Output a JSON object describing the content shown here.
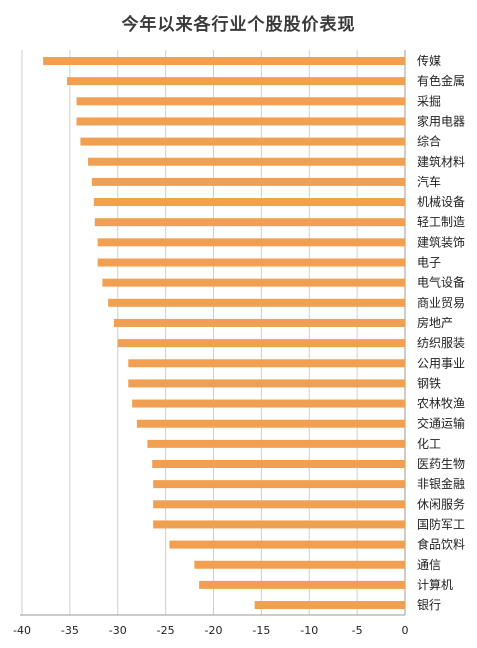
{
  "chart_data": {
    "type": "bar",
    "orientation": "horizontal",
    "title": "今年以来各行业个股股价表现",
    "xlabel": "",
    "ylabel": "",
    "xlim": [
      -40,
      0
    ],
    "xticks": [
      -40,
      -35,
      -30,
      -25,
      -20,
      -15,
      -10,
      -5,
      0
    ],
    "grid": "vertical",
    "bar_color": "#F0A050",
    "categories": [
      "传媒",
      "有色金属",
      "采掘",
      "家用电器",
      "综合",
      "建筑材料",
      "汽车",
      "机械设备",
      "轻工制造",
      "建筑装饰",
      "电子",
      "电气设备",
      "商业贸易",
      "房地产",
      "纺织服装",
      "公用事业",
      "钢铁",
      "农林牧渔",
      "交通运输",
      "化工",
      "医药生物",
      "非银金融",
      "休闲服务",
      "国防军工",
      "食品饮料",
      "通信",
      "计算机",
      "银行"
    ],
    "values": [
      -37.8,
      -35.3,
      -34.3,
      -34.3,
      -33.9,
      -33.1,
      -32.7,
      -32.5,
      -32.4,
      -32.1,
      -32.1,
      -31.6,
      -31.0,
      -30.4,
      -30.0,
      -28.9,
      -28.9,
      -28.5,
      -28.0,
      -26.9,
      -26.4,
      -26.3,
      -26.3,
      -26.3,
      -24.6,
      -22.0,
      -21.5,
      -15.7
    ]
  }
}
